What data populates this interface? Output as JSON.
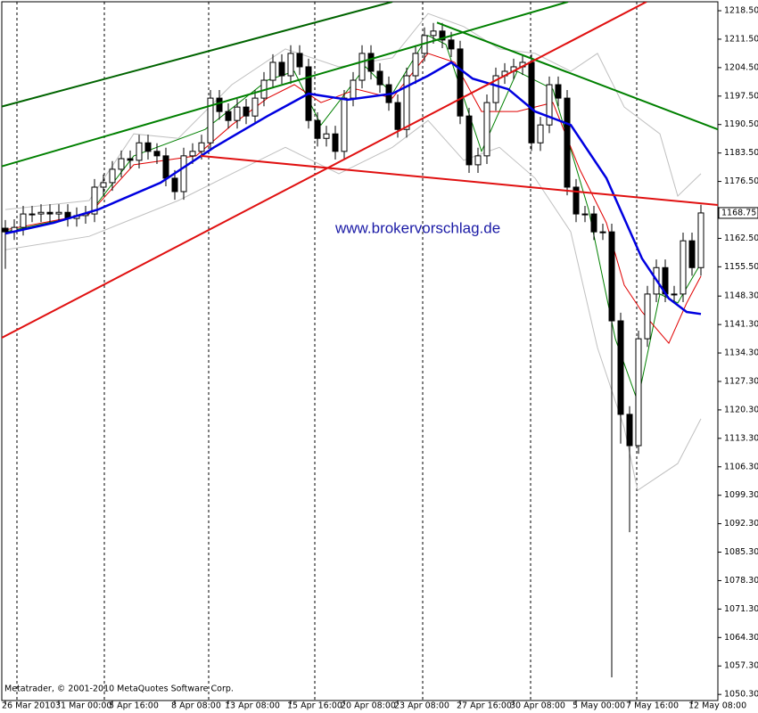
{
  "chart_data": {
    "type": "candlestick",
    "open": [
      1165.0,
      1164.1,
      1165.2,
      1168.5,
      1168.5,
      1168.9,
      1168.5,
      1168.9,
      1167.4,
      1168.1,
      1168.5,
      1175.1,
      1176.2,
      1179.5,
      1182.1,
      1181.7,
      1186.0,
      1183.9,
      1182.8,
      1177.3,
      1174.0,
      1182.8,
      1183.9,
      1186.0,
      1197.0,
      1193.7,
      1191.5,
      1194.8,
      1192.6,
      1197.0,
      1201.4,
      1205.8,
      1202.5,
      1208.0,
      1204.7,
      1191.5,
      1187.1,
      1188.2,
      1183.9,
      1197.0,
      1201.4,
      1208.0,
      1203.6,
      1200.3,
      1195.9,
      1189.3,
      1202.5,
      1208.0,
      1212.4,
      1213.5,
      1211.3,
      1209.1,
      1192.6,
      1180.6,
      1182.8,
      1195.9,
      1202.5,
      1203.6,
      1204.7,
      1205.8,
      1186.0,
      1190.4,
      1200.3,
      1197.0,
      1175.1,
      1168.5,
      1168.5,
      1164.1,
      1164.1,
      1142.2,
      1119.2,
      1111.5,
      1137.8,
      1148.8,
      1155.3,
      1148.8,
      1148.8,
      1161.9,
      1155.3
    ],
    "high": [
      1167.0,
      1167.2,
      1170.5,
      1170.5,
      1170.9,
      1170.9,
      1170.9,
      1170.9,
      1170.1,
      1170.5,
      1177.1,
      1178.2,
      1181.5,
      1184.1,
      1184.1,
      1188.0,
      1188.0,
      1185.9,
      1184.8,
      1179.3,
      1184.8,
      1185.9,
      1188.0,
      1199.0,
      1199.0,
      1195.7,
      1196.8,
      1196.8,
      1199.0,
      1203.4,
      1207.8,
      1207.8,
      1210.0,
      1210.0,
      1206.7,
      1193.5,
      1190.2,
      1190.2,
      1199.0,
      1203.4,
      1210.0,
      1210.0,
      1205.6,
      1202.3,
      1197.9,
      1204.5,
      1210.0,
      1214.4,
      1215.5,
      1215.5,
      1213.3,
      1211.1,
      1194.6,
      1184.8,
      1197.9,
      1204.5,
      1205.6,
      1206.7,
      1207.8,
      1207.8,
      1192.4,
      1202.3,
      1202.3,
      1199.0,
      1177.1,
      1170.5,
      1170.5,
      1166.1,
      1166.1,
      1144.2,
      1121.2,
      1139.8,
      1150.8,
      1157.3,
      1157.3,
      1150.8,
      1163.9,
      1163.9,
      1170.75
    ],
    "low": [
      1155.0,
      1162.1,
      1163.2,
      1166.5,
      1166.5,
      1166.5,
      1166.5,
      1165.4,
      1165.4,
      1166.1,
      1166.5,
      1173.1,
      1174.2,
      1177.5,
      1179.7,
      1179.7,
      1181.9,
      1180.8,
      1175.3,
      1172.0,
      1172.0,
      1180.8,
      1181.9,
      1184.0,
      1191.7,
      1189.5,
      1189.5,
      1190.6,
      1190.6,
      1195.0,
      1199.4,
      1200.5,
      1200.5,
      1202.7,
      1189.5,
      1185.1,
      1185.1,
      1181.9,
      1181.9,
      1195.0,
      1199.4,
      1201.6,
      1198.3,
      1193.9,
      1187.3,
      1187.3,
      1200.5,
      1206.0,
      1210.4,
      1209.3,
      1207.1,
      1190.6,
      1178.6,
      1178.6,
      1180.8,
      1193.9,
      1200.5,
      1201.6,
      1202.7,
      1184.0,
      1184.0,
      1188.4,
      1195.0,
      1173.1,
      1166.5,
      1166.5,
      1162.1,
      1162.1,
      1054.5,
      1112.0,
      1090.2,
      1109.5,
      1135.8,
      1146.8,
      1146.8,
      1146.8,
      1146.8,
      1153.3,
      1153.3
    ],
    "close": [
      1164.1,
      1165.2,
      1168.5,
      1168.5,
      1168.9,
      1168.5,
      1168.9,
      1167.4,
      1168.1,
      1168.5,
      1175.1,
      1176.2,
      1179.5,
      1182.1,
      1181.7,
      1186.0,
      1183.9,
      1182.8,
      1177.3,
      1174.0,
      1182.8,
      1183.9,
      1186.0,
      1197.0,
      1193.7,
      1191.5,
      1194.8,
      1192.6,
      1197.0,
      1201.4,
      1205.8,
      1202.5,
      1208.0,
      1204.7,
      1191.5,
      1187.1,
      1188.2,
      1183.9,
      1197.0,
      1201.4,
      1208.0,
      1203.6,
      1200.3,
      1195.9,
      1189.3,
      1202.5,
      1208.0,
      1212.4,
      1213.5,
      1211.3,
      1209.1,
      1192.6,
      1180.6,
      1182.8,
      1195.9,
      1202.5,
      1203.6,
      1204.7,
      1205.8,
      1186.0,
      1190.4,
      1200.3,
      1197.0,
      1175.1,
      1168.5,
      1168.5,
      1164.1,
      1164.1,
      1142.2,
      1119.2,
      1111.5,
      1137.8,
      1148.8,
      1155.3,
      1148.8,
      1148.8,
      1161.9,
      1155.3,
      1168.75
    ],
    "up_color": "#ffffff",
    "down_color": "#000000",
    "wick_color": "#000000",
    "xlim": [
      -0.4,
      79.9
    ],
    "ylim": [
      1048.8,
      1220.7
    ],
    "xticks": [
      {
        "value": 0,
        "label": "26 Mar 2010"
      },
      {
        "value": 6,
        "label": "31 Mar 00:00"
      },
      {
        "value": 12,
        "label": "5 Apr 16:00"
      },
      {
        "value": 19,
        "label": "8 Apr 08:00"
      },
      {
        "value": 25,
        "label": "13 Apr 08:00"
      },
      {
        "value": 32,
        "label": "15 Apr 16:00"
      },
      {
        "value": 38,
        "label": "20 Apr 08:00"
      },
      {
        "value": 44,
        "label": "23 Apr 08:00"
      },
      {
        "value": 51,
        "label": "27 Apr 16:00"
      },
      {
        "value": 57,
        "label": "30 Apr 08:00"
      },
      {
        "value": 64,
        "label": "5 May 00:00"
      },
      {
        "value": 70,
        "label": "7 May 16:00"
      },
      {
        "value": 77,
        "label": "12 May 08:00"
      }
    ],
    "yticks": [
      {
        "value": 1218.5,
        "label": "1218.50"
      },
      {
        "value": 1211.5,
        "label": "1211.50"
      },
      {
        "value": 1204.5,
        "label": "1204.50"
      },
      {
        "value": 1197.5,
        "label": "1197.50"
      },
      {
        "value": 1190.5,
        "label": "1190.50"
      },
      {
        "value": 1183.5,
        "label": "1183.50"
      },
      {
        "value": 1176.5,
        "label": "1176.50"
      },
      {
        "value": 1162.5,
        "label": "1162.50"
      },
      {
        "value": 1155.5,
        "label": "1155.50"
      },
      {
        "value": 1148.3,
        "label": "1148.30"
      },
      {
        "value": 1141.3,
        "label": "1141.30"
      },
      {
        "value": 1134.3,
        "label": "1134.30"
      },
      {
        "value": 1127.3,
        "label": "1127.30"
      },
      {
        "value": 1120.3,
        "label": "1120.30"
      },
      {
        "value": 1113.3,
        "label": "1113.30"
      },
      {
        "value": 1106.3,
        "label": "1106.30"
      },
      {
        "value": 1099.3,
        "label": "1099.30"
      },
      {
        "value": 1092.3,
        "label": "1092.30"
      },
      {
        "value": 1085.3,
        "label": "1085.30"
      },
      {
        "value": 1078.3,
        "label": "1078.30"
      },
      {
        "value": 1071.3,
        "label": "1071.30"
      },
      {
        "value": 1064.3,
        "label": "1064.30"
      },
      {
        "value": 1057.3,
        "label": "1057.30"
      },
      {
        "value": 1050.3,
        "label": "1050.30"
      }
    ],
    "separators": [
      1.3,
      11.1,
      22.8,
      34.7,
      46.8,
      58.9,
      70.8
    ],
    "indicators": [
      {
        "color": "#c0c0c0",
        "width": 1,
        "x": [
          0,
          9.4,
          14.4,
          19.4,
          25.4,
          31.4,
          37.4,
          43.4,
          47.4,
          51.4,
          55.4,
          59.4,
          63.4,
          66.4,
          69.4,
          73.4,
          75.4,
          78
        ],
        "values": [
          1169.6,
          1171.8,
          1188.2,
          1187.1,
          1200.3,
          1209.1,
          1204.7,
          1206.9,
          1217.8,
          1214.6,
          1209.1,
          1208.0,
          1203.6,
          1208.0,
          1194.8,
          1188.2,
          1172.9,
          1178.4
        ]
      },
      {
        "color": "#c0c0c0",
        "width": 1,
        "x": [
          0,
          9.4,
          19.4,
          25.4,
          31.4,
          37.4,
          43.4,
          47.4,
          51.4,
          55.4,
          59.4,
          63.4,
          66.4,
          69.4,
          70.9,
          75.4,
          78
        ],
        "values": [
          1159.7,
          1163.0,
          1171.8,
          1178.4,
          1184.9,
          1178.4,
          1184.9,
          1191.5,
          1181.7,
          1184.9,
          1177.3,
          1164.1,
          1135.6,
          1115.9,
          1100.5,
          1107.1,
          1118.1
        ]
      },
      {
        "color": "#008000",
        "width": 1,
        "x": [
          0,
          9.4,
          14.4,
          22.4,
          29.4,
          32.4,
          35.4,
          40.4,
          43.4,
          47.4,
          49.4,
          53.4,
          57.4,
          61.4,
          65.4,
          68.4,
          70.9,
          73.4,
          75.4,
          78
        ],
        "values": [
          1164.1,
          1168.5,
          1182.8,
          1189.3,
          1201.4,
          1203.6,
          1190.4,
          1204.7,
          1198.1,
          1212.4,
          1210.2,
          1183.9,
          1203.6,
          1199.2,
          1169.6,
          1137.8,
          1122.4,
          1148.8,
          1146.6,
          1156.4
        ]
      },
      {
        "color": "#e00000",
        "width": 1,
        "x": [
          0,
          9.4,
          14.4,
          21.4,
          25.4,
          29.4,
          32.4,
          35.4,
          39.4,
          43.4,
          47.4,
          50.4,
          53.4,
          57.4,
          61.4,
          64.4,
          67.4,
          69.4,
          71.4,
          74.4,
          76.4,
          78
        ],
        "values": [
          1164.6,
          1168.5,
          1180.6,
          1182.8,
          1190.4,
          1197.0,
          1200.3,
          1195.9,
          1199.2,
          1197.0,
          1208.0,
          1205.8,
          1193.7,
          1193.7,
          1195.9,
          1179.5,
          1166.3,
          1151.0,
          1144.4,
          1136.7,
          1146.6,
          1153.2
        ]
      },
      {
        "color": "#0000e0",
        "width": 2.5,
        "x": [
          0,
          5.4,
          10.4,
          17.4,
          23.4,
          29.4,
          34,
          38.4,
          43.4,
          47.4,
          50,
          52.4,
          56.4,
          59.4,
          63.4,
          67.4,
          71.4,
          74.4,
          76.4,
          78
        ],
        "values": [
          1163.7,
          1166.3,
          1169.6,
          1176.2,
          1184.9,
          1192.6,
          1198.1,
          1196.6,
          1198.1,
          1202.5,
          1205.8,
          1201.8,
          1199.2,
          1193.7,
          1190.4,
          1177.3,
          1157.5,
          1147.7,
          1144.4,
          1143.9
        ]
      }
    ],
    "trend_lines": [
      {
        "color": "#006400",
        "x": [
          -0.6,
          43.4
        ],
        "values": [
          1194.8,
          1220.7
        ]
      },
      {
        "color": "#008000",
        "x": [
          -0.6,
          63.1
        ],
        "values": [
          1180.1,
          1220.7
        ]
      },
      {
        "color": "#008000",
        "x": [
          48.4,
          79.9
        ],
        "values": [
          1215.6,
          1189.3
        ]
      },
      {
        "color": "#e01010",
        "x": [
          -0.6,
          71.9
        ],
        "values": [
          1137.8,
          1220.7
        ]
      },
      {
        "color": "#e01010",
        "x": [
          21.9,
          79.9
        ],
        "values": [
          1182.8,
          1170.7
        ]
      }
    ],
    "current_price": 1168.75,
    "watermark": "www.brokervorschlag.de",
    "copyright": "Metatrader, © 2001-2010 MetaQuotes Software Corp."
  }
}
